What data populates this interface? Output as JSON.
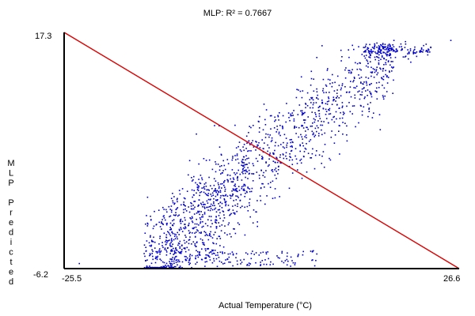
{
  "chart_data": {
    "type": "scatter",
    "title": "MLP: R² = 0.7667",
    "xlabel": "Actual Temperature (°C)",
    "ylabel": "MLP Predicted",
    "xlim": [
      -25.5,
      26.6
    ],
    "ylim": [
      -6.2,
      17.3
    ],
    "x_ticks": [
      "-25.5",
      "26.6"
    ],
    "y_ticks": [
      "17.3",
      "-6.2"
    ],
    "grid": false,
    "legend": "none",
    "colors": {
      "points": "#0000cc",
      "reference_line": "#dd0000",
      "axes": "#000000"
    },
    "reference_line": {
      "from": [
        -25.5,
        17.3
      ],
      "to": [
        26.6,
        -6.2
      ]
    },
    "point_cloud": {
      "description_points": [
        [
          -23.5,
          -5.7
        ],
        [
          -14.5,
          0.9
        ],
        [
          -10.0,
          -4.5
        ],
        [
          -5.0,
          -3.0
        ],
        [
          0.0,
          -2.0
        ],
        [
          2.0,
          2.5
        ],
        [
          5.0,
          5.0
        ],
        [
          8.0,
          8.5
        ],
        [
          10.0,
          10.5
        ],
        [
          12.0,
          13.5
        ],
        [
          14.0,
          15.8
        ],
        [
          16.0,
          14.5
        ],
        [
          18.0,
          16.5
        ],
        [
          20.0,
          15.2
        ],
        [
          25.5,
          16.5
        ]
      ]
    }
  }
}
